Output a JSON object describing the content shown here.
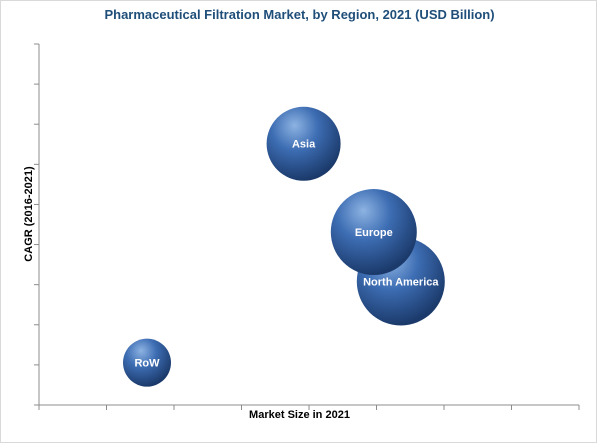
{
  "chart_data": {
    "type": "scatter",
    "title": "Pharmaceutical Filtration Market, by Region, 2021 (USD Billion)",
    "xlabel": "Market Size in 2021",
    "ylabel": "CAGR (2016-2021)",
    "xlim": [
      0,
      10
    ],
    "ylim": [
      0,
      10
    ],
    "tick_labels_shown": false,
    "grid": false,
    "bubbles": [
      {
        "label": "Asia",
        "x": 4.9,
        "y": 7.4,
        "size": 37
      },
      {
        "label": "Europe",
        "x": 6.2,
        "y": 4.9,
        "size": 43
      },
      {
        "label": "North America",
        "x": 6.7,
        "y": 3.5,
        "size": 44
      },
      {
        "label": "RoW",
        "x": 2.0,
        "y": 1.2,
        "size": 24
      }
    ],
    "colors": {
      "bubble_light": "#8db3e2",
      "bubble_mid": "#3d6db3",
      "bubble_dark": "#1b3a6b",
      "title": "#1f4e79"
    }
  }
}
